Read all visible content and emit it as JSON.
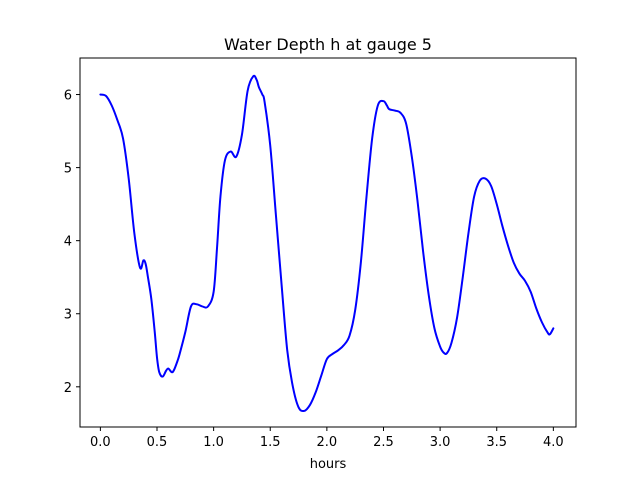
{
  "chart_data": {
    "type": "line",
    "title": "Water Depth h at gauge 5",
    "xlabel": "hours",
    "ylabel": "",
    "xlim": [
      -0.18,
      4.2
    ],
    "ylim": [
      1.45,
      6.5
    ],
    "x_ticks": [
      0.0,
      0.5,
      1.0,
      1.5,
      2.0,
      2.5,
      3.0,
      3.5,
      4.0
    ],
    "x_tick_labels": [
      "0.0",
      "0.5",
      "1.0",
      "1.5",
      "2.0",
      "2.5",
      "3.0",
      "3.5",
      "4.0"
    ],
    "y_ticks": [
      2,
      3,
      4,
      5,
      6
    ],
    "y_tick_labels": [
      "2",
      "3",
      "4",
      "5",
      "6"
    ],
    "grid": false,
    "legend": "none",
    "colors": {
      "line": "#0000ff",
      "axes": "#000000",
      "background": "#ffffff"
    },
    "series": [
      {
        "x": [
          0.0,
          0.05,
          0.1,
          0.15,
          0.2,
          0.25,
          0.3,
          0.35,
          0.38,
          0.4,
          0.42,
          0.45,
          0.48,
          0.5,
          0.52,
          0.55,
          0.58,
          0.6,
          0.63,
          0.65,
          0.68,
          0.7,
          0.75,
          0.8,
          0.85,
          0.9,
          0.95,
          1.0,
          1.03,
          1.06,
          1.1,
          1.15,
          1.2,
          1.25,
          1.3,
          1.35,
          1.38,
          1.4,
          1.43,
          1.45,
          1.5,
          1.55,
          1.6,
          1.65,
          1.7,
          1.75,
          1.8,
          1.85,
          1.9,
          1.95,
          2.0,
          2.05,
          2.1,
          2.15,
          2.2,
          2.25,
          2.3,
          2.35,
          2.4,
          2.45,
          2.5,
          2.53,
          2.55,
          2.6,
          2.65,
          2.7,
          2.75,
          2.8,
          2.85,
          2.9,
          2.95,
          3.0,
          3.03,
          3.06,
          3.1,
          3.15,
          3.2,
          3.25,
          3.3,
          3.35,
          3.4,
          3.45,
          3.5,
          3.55,
          3.6,
          3.65,
          3.7,
          3.75,
          3.8,
          3.85,
          3.9,
          3.95,
          3.97,
          4.0
        ],
        "y": [
          6.0,
          5.98,
          5.85,
          5.65,
          5.4,
          4.85,
          4.1,
          3.63,
          3.73,
          3.68,
          3.5,
          3.2,
          2.75,
          2.4,
          2.2,
          2.14,
          2.22,
          2.25,
          2.2,
          2.23,
          2.35,
          2.45,
          2.75,
          3.1,
          3.13,
          3.1,
          3.1,
          3.3,
          3.9,
          4.6,
          5.1,
          5.22,
          5.15,
          5.45,
          6.05,
          6.25,
          6.2,
          6.1,
          6.0,
          5.9,
          5.3,
          4.35,
          3.4,
          2.5,
          2.0,
          1.72,
          1.67,
          1.75,
          1.92,
          2.15,
          2.38,
          2.45,
          2.5,
          2.57,
          2.7,
          3.05,
          3.7,
          4.6,
          5.4,
          5.85,
          5.91,
          5.85,
          5.8,
          5.78,
          5.75,
          5.6,
          5.15,
          4.55,
          3.85,
          3.25,
          2.8,
          2.55,
          2.47,
          2.46,
          2.6,
          2.95,
          3.5,
          4.1,
          4.6,
          4.82,
          4.85,
          4.75,
          4.5,
          4.2,
          3.93,
          3.7,
          3.55,
          3.45,
          3.3,
          3.07,
          2.88,
          2.74,
          2.72,
          2.8
        ]
      }
    ]
  }
}
